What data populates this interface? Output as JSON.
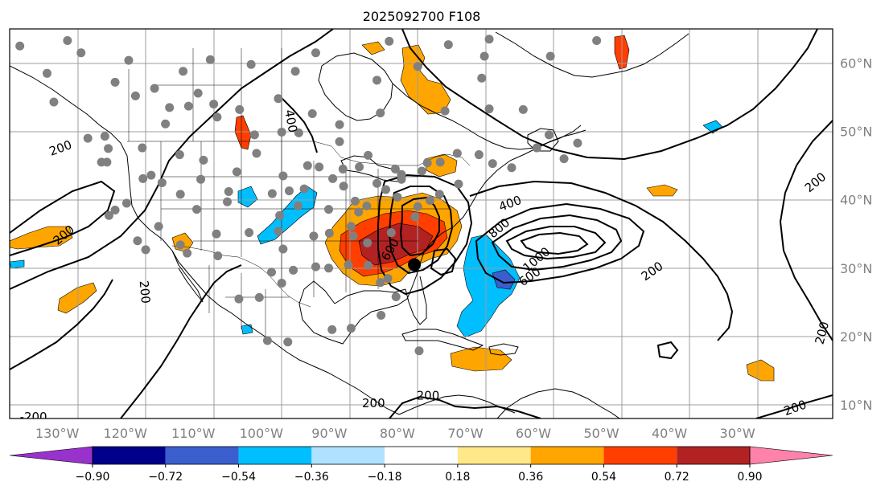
{
  "title": "2025092700 F108",
  "map": {
    "lon_range": [
      -137,
      -16
    ],
    "lat_range": [
      8,
      65
    ],
    "lon_ticks": [
      {
        "lon": -130,
        "label": "130°W"
      },
      {
        "lon": -120,
        "label": "120°W"
      },
      {
        "lon": -110,
        "label": "110°W"
      },
      {
        "lon": -100,
        "label": "100°W"
      },
      {
        "lon": -90,
        "label": "90°W"
      },
      {
        "lon": -80,
        "label": "80°W"
      },
      {
        "lon": -70,
        "label": "70°W"
      },
      {
        "lon": -60,
        "label": "60°W"
      },
      {
        "lon": -50,
        "label": "50°W"
      },
      {
        "lon": -40,
        "label": "40°W"
      },
      {
        "lon": -30,
        "label": "30°W"
      }
    ],
    "lat_ticks": [
      {
        "lat": 60,
        "label": "60°N"
      },
      {
        "lat": 50,
        "label": "50°N"
      },
      {
        "lat": 40,
        "label": "40°N"
      },
      {
        "lat": 30,
        "label": "30°N"
      },
      {
        "lat": 20,
        "label": "20°N"
      },
      {
        "lat": 10,
        "label": "10°N"
      }
    ],
    "grid": true,
    "storm_center": {
      "lon": -77.5,
      "lat": 30.5
    },
    "contour_labels": [
      {
        "text": "400",
        "lon": -95.7,
        "lat": 51.5,
        "rot": 80
      },
      {
        "text": "200",
        "lon": -129.5,
        "lat": 47.5,
        "rot": -20
      },
      {
        "text": "200",
        "lon": -129.0,
        "lat": 34.8,
        "rot": -40
      },
      {
        "text": "200",
        "lon": -117.2,
        "lat": 26.5,
        "rot": 85
      },
      {
        "text": "400",
        "lon": -63.4,
        "lat": 39.4,
        "rot": -20
      },
      {
        "text": "800",
        "lon": -65.0,
        "lat": 35.8,
        "rot": -40
      },
      {
        "text": "1000",
        "lon": -59.5,
        "lat": 31.2,
        "rot": -40
      },
      {
        "text": "600",
        "lon": -60.5,
        "lat": 28.7,
        "rot": -35
      },
      {
        "text": "600",
        "lon": -81.0,
        "lat": 32.7,
        "rot": -60
      },
      {
        "text": "200",
        "lon": -42.5,
        "lat": 29.5,
        "rot": -35
      },
      {
        "text": "200",
        "lon": -18.5,
        "lat": 42.5,
        "rot": -40
      },
      {
        "text": "200",
        "lon": -17.5,
        "lat": 20.5,
        "rot": -75
      },
      {
        "text": "200",
        "lon": -21.5,
        "lat": 9.5,
        "rot": -20
      },
      {
        "text": "200",
        "lon": -83.5,
        "lat": 10.2,
        "rot": 0
      },
      {
        "text": "200",
        "lon": -75.5,
        "lat": 11.3,
        "rot": 0
      },
      {
        "text": "-200",
        "lon": -133.5,
        "lat": 8.2,
        "rot": 0
      }
    ],
    "stations": [
      [
        -135.5,
        62.5
      ],
      [
        -128.5,
        63.3
      ],
      [
        -126.5,
        61.5
      ],
      [
        -119.5,
        60.4
      ],
      [
        -131.5,
        58.5
      ],
      [
        -121.5,
        57.2
      ],
      [
        -115.7,
        56.3
      ],
      [
        -109.3,
        55.6
      ],
      [
        -107.0,
        54.0
      ],
      [
        -110.7,
        53.7
      ],
      [
        -103.2,
        53.2
      ],
      [
        -97.5,
        54.8
      ],
      [
        -92.5,
        52.6
      ],
      [
        -88.5,
        51.0
      ],
      [
        -82.5,
        52.7
      ],
      [
        -73.0,
        53.0
      ],
      [
        -66.5,
        53.3
      ],
      [
        -61.5,
        53.2
      ],
      [
        -67.6,
        57.8
      ],
      [
        -92.0,
        61.5
      ],
      [
        -81.2,
        63.2
      ],
      [
        -72.5,
        62.7
      ],
      [
        -66.5,
        63.5
      ],
      [
        -57.5,
        61.0
      ],
      [
        -50.7,
        63.3
      ],
      [
        -77.0,
        59.5
      ],
      [
        -67.2,
        61.0
      ],
      [
        -59.5,
        47.6
      ],
      [
        -53.5,
        48.3
      ],
      [
        -55.5,
        46.0
      ],
      [
        -63.2,
        44.7
      ],
      [
        -66.0,
        45.3
      ],
      [
        -71.2,
        46.8
      ],
      [
        -75.6,
        45.4
      ],
      [
        -79.4,
        43.7
      ],
      [
        -76.4,
        44.2
      ],
      [
        -80.3,
        44.5
      ],
      [
        -84.3,
        46.5
      ],
      [
        -88.5,
        48.5
      ],
      [
        -94.5,
        49.8
      ],
      [
        -97.0,
        49.9
      ],
      [
        -101.0,
        49.5
      ],
      [
        -106.5,
        52.1
      ],
      [
        -113.5,
        53.5
      ],
      [
        -114.1,
        51.1
      ],
      [
        -118.5,
        55.2
      ],
      [
        -123.0,
        49.3
      ],
      [
        -125.5,
        49.0
      ],
      [
        -130.5,
        54.3
      ],
      [
        -123.5,
        45.5
      ],
      [
        -122.5,
        47.5
      ],
      [
        -117.5,
        47.6
      ],
      [
        -116.2,
        43.6
      ],
      [
        -111.9,
        40.8
      ],
      [
        -108.5,
        45.8
      ],
      [
        -104.8,
        41.2
      ],
      [
        -100.7,
        46.8
      ],
      [
        -96.8,
        43.5
      ],
      [
        -93.2,
        45.0
      ],
      [
        -89.5,
        43.1
      ],
      [
        -87.9,
        42.0
      ],
      [
        -83.0,
        42.4
      ],
      [
        -81.7,
        41.5
      ],
      [
        -80.0,
        40.4
      ],
      [
        -77.0,
        39.0
      ],
      [
        -73.8,
        40.8
      ],
      [
        -71.0,
        42.3
      ],
      [
        -75.2,
        39.9
      ],
      [
        -77.4,
        37.5
      ],
      [
        -80.9,
        35.2
      ],
      [
        -84.4,
        33.7
      ],
      [
        -86.8,
        36.1
      ],
      [
        -90.1,
        38.6
      ],
      [
        -94.6,
        39.1
      ],
      [
        -97.5,
        35.4
      ],
      [
        -101.8,
        35.2
      ],
      [
        -106.6,
        35.0
      ],
      [
        -111.9,
        33.4
      ],
      [
        -115.1,
        36.1
      ],
      [
        -118.2,
        34.0
      ],
      [
        -121.5,
        38.5
      ],
      [
        -122.4,
        37.7
      ],
      [
        -119.8,
        39.5
      ],
      [
        -112.0,
        46.6
      ],
      [
        -106.4,
        31.8
      ],
      [
        -98.5,
        29.4
      ],
      [
        -96.8,
        32.8
      ],
      [
        -95.3,
        29.7
      ],
      [
        -92.0,
        30.2
      ],
      [
        -90.1,
        30.0
      ],
      [
        -87.2,
        30.5
      ],
      [
        -82.5,
        27.9
      ],
      [
        -80.2,
        25.8
      ],
      [
        -81.4,
        28.5
      ],
      [
        -84.3,
        30.4
      ],
      [
        -86.5,
        34.7
      ],
      [
        -90.0,
        35.1
      ],
      [
        -92.3,
        34.7
      ],
      [
        -97.0,
        27.8
      ],
      [
        -103.3,
        25.5
      ],
      [
        -110.9,
        32.2
      ],
      [
        -117.0,
        32.7
      ],
      [
        -100.3,
        25.7
      ],
      [
        -99.1,
        19.4
      ],
      [
        -96.1,
        19.2
      ],
      [
        -89.6,
        21.0
      ],
      [
        -86.8,
        21.2
      ],
      [
        -82.4,
        23.1
      ],
      [
        -76.8,
        17.9
      ],
      [
        -79.4,
        43.0
      ],
      [
        -85.6,
        44.8
      ],
      [
        -88.0,
        44.5
      ],
      [
        -95.9,
        41.3
      ],
      [
        -98.4,
        40.9
      ],
      [
        -103.6,
        44.1
      ],
      [
        -108.9,
        43.0
      ],
      [
        -122.7,
        45.5
      ],
      [
        -117.4,
        43.1
      ],
      [
        -114.6,
        42.5
      ],
      [
        -109.5,
        38.6
      ],
      [
        -105.0,
        39.7
      ],
      [
        -97.3,
        37.7
      ],
      [
        -93.7,
        41.6
      ],
      [
        -91.5,
        44.8
      ],
      [
        -86.2,
        39.8
      ],
      [
        -84.5,
        39.1
      ],
      [
        -85.7,
        38.2
      ],
      [
        -73.7,
        45.5
      ],
      [
        -68.0,
        46.6
      ],
      [
        -57.7,
        49.5
      ],
      [
        -83.0,
        57.5
      ],
      [
        -95.0,
        58.8
      ],
      [
        -111.5,
        58.8
      ],
      [
        -101.5,
        59.8
      ],
      [
        -107.5,
        60.5
      ]
    ]
  },
  "colorbar": {
    "colors": [
      "#9932cc",
      "#00008b",
      "#3a5fcd",
      "#00bfff",
      "#b0e2ff",
      "#ffffff",
      "#ffe889",
      "#ffa500",
      "#ff3e00",
      "#b22222",
      "#ff82ab"
    ],
    "tick_labels": [
      "−0.90",
      "−0.72",
      "−0.54",
      "−0.36",
      "−0.18",
      "0.18",
      "0.36",
      "0.54",
      "0.72",
      "0.90"
    ]
  }
}
